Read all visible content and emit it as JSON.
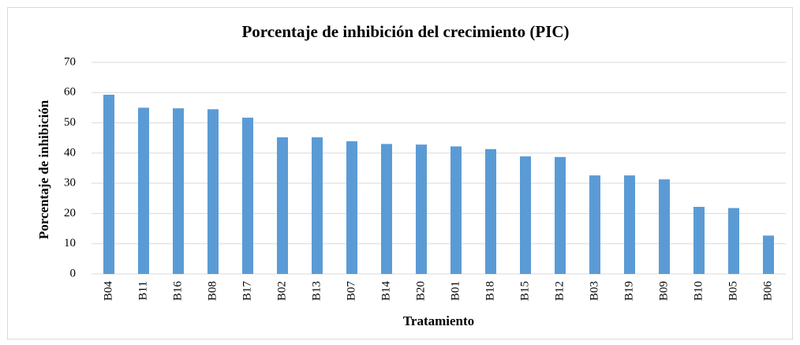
{
  "chart_data": {
    "type": "bar",
    "title": "Porcentaje de inhibición del crecimiento  (PIC)",
    "x_label": "Tratamiento",
    "y_label": "Porcentaje de inhibición",
    "categories": [
      "B04",
      "B11",
      "B16",
      "B08",
      "B17",
      "B02",
      "B13",
      "B07",
      "B14",
      "B20",
      "B01",
      "B18",
      "B15",
      "B12",
      "B03",
      "B19",
      "B09",
      "B10",
      "B05",
      "B06"
    ],
    "values": [
      59.3,
      55,
      54.8,
      54.5,
      51.7,
      45.2,
      45.2,
      43.9,
      43,
      42.8,
      42.2,
      41.3,
      38.9,
      38.7,
      32.6,
      32.6,
      31.3,
      22.2,
      21.8,
      12.7
    ],
    "color": "#5b9bd5",
    "ylim": [
      0,
      70
    ],
    "yticks": [
      0,
      10,
      20,
      30,
      40,
      50,
      60,
      70
    ],
    "grid": true
  }
}
